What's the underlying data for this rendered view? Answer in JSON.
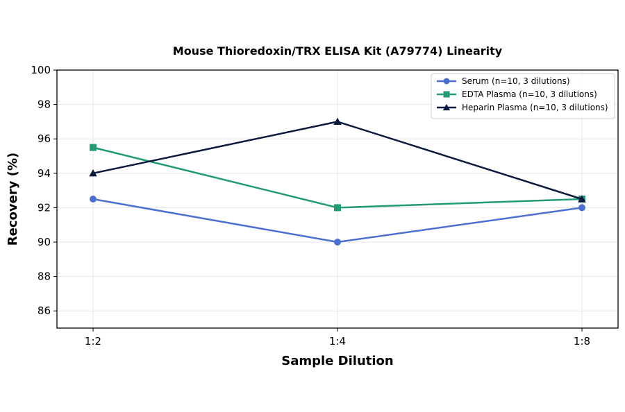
{
  "chart_data": {
    "type": "line",
    "title": "Mouse Thioredoxin/TRX ELISA Kit (A79774) Linearity",
    "xlabel": "Sample Dilution",
    "ylabel": "Recovery (%)",
    "categories": [
      "1:2",
      "1:4",
      "1:8"
    ],
    "ylim": [
      85,
      100
    ],
    "yticks": [
      86,
      88,
      90,
      92,
      94,
      96,
      98,
      100
    ],
    "grid": true,
    "legend_position": "top-right",
    "series": [
      {
        "name": "Serum (n=10, 3 dilutions)",
        "values": [
          92.5,
          90,
          92
        ],
        "color": "#4a6fd0",
        "marker": "circle"
      },
      {
        "name": "EDTA Plasma (n=10, 3 dilutions)",
        "values": [
          95.5,
          92,
          92.5
        ],
        "color": "#229a74",
        "marker": "square"
      },
      {
        "name": "Heparin Plasma (n=10, 3 dilutions)",
        "values": [
          94,
          97,
          92.5
        ],
        "color": "#0b1a3e",
        "marker": "triangle"
      }
    ]
  }
}
